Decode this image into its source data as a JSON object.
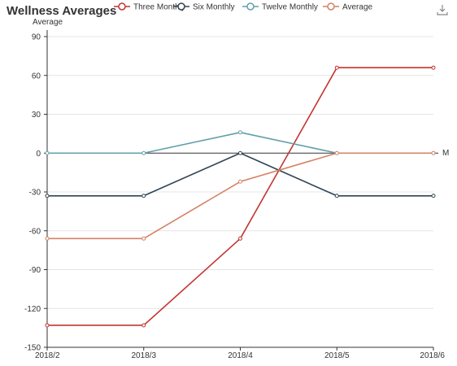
{
  "chart_data": {
    "type": "line",
    "title": "Wellness Averages",
    "ylabel": "Average",
    "x": [
      "2018/2",
      "2018/3",
      "2018/4",
      "2018/5",
      "2018/6"
    ],
    "ylim": [
      -150,
      90
    ],
    "yticks": [
      90,
      60,
      30,
      0,
      -30,
      -60,
      -90,
      -120,
      -150
    ],
    "grid": true,
    "legend_position": "top",
    "zero_line_label": "M",
    "series": [
      {
        "name": "Three Monthly",
        "color": "#c23531",
        "values": [
          -133,
          -133,
          -66,
          66,
          66
        ]
      },
      {
        "name": "Six Monthly",
        "color": "#2f4554",
        "values": [
          -33,
          -33,
          0,
          -33,
          -33
        ]
      },
      {
        "name": "Twelve Monthly",
        "color": "#61a0a8",
        "values": [
          0,
          0,
          16,
          0,
          0
        ]
      },
      {
        "name": "Average",
        "color": "#d48265",
        "values": [
          -66,
          -66,
          -22,
          0,
          0
        ]
      }
    ]
  },
  "toolbar": {
    "download_icon": "download-icon"
  }
}
